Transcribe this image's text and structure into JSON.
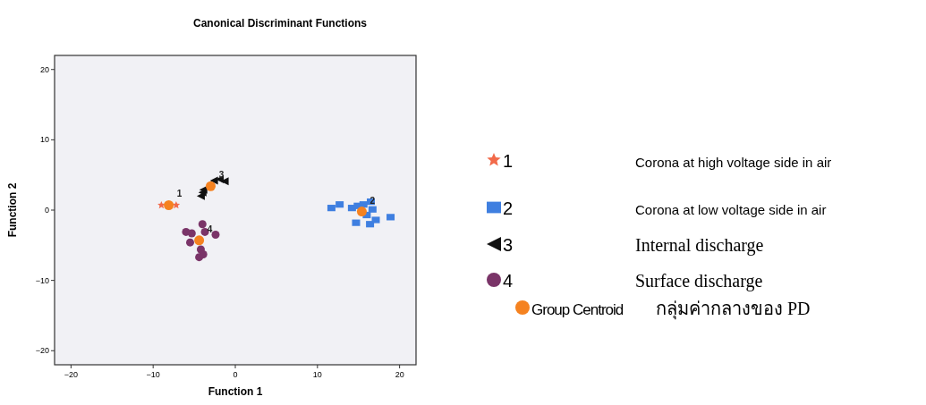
{
  "chart_data": {
    "type": "scatter",
    "title": "Canonical Discriminant Functions",
    "xlabel": "Function 1",
    "ylabel": "Function 2",
    "xlim": [
      -22,
      22
    ],
    "ylim": [
      -22,
      22
    ],
    "xticks": [
      -20,
      -10,
      0,
      10,
      20
    ],
    "yticks": [
      -20,
      -10,
      0,
      10,
      20
    ],
    "legend": "right",
    "series": [
      {
        "name": "1",
        "color": "#f26a4a",
        "marker": "star",
        "x": [
          -9.0,
          -7.2
        ],
        "values": [
          0.7,
          0.7
        ]
      },
      {
        "name": "2",
        "color": "#3f7fe0",
        "marker": "square",
        "x": [
          11.7,
          12.7,
          14.2,
          14.9,
          15.6,
          16.5,
          16.7,
          14.7,
          16.4,
          17.1,
          18.9,
          16.0
        ],
        "values": [
          0.3,
          0.8,
          0.3,
          0.6,
          0.8,
          1.2,
          0.1,
          -1.8,
          -2.0,
          -1.4,
          -1.0,
          -0.7
        ]
      },
      {
        "name": "3",
        "color": "#111111",
        "marker": "triangle",
        "x": [
          -4.2,
          -4.0,
          -3.9,
          -2.6,
          -1.9,
          -1.3
        ],
        "values": [
          2.0,
          2.5,
          2.9,
          4.2,
          4.4,
          4.1
        ]
      },
      {
        "name": "4",
        "color": "#7a3468",
        "marker": "circle",
        "x": [
          -6.0,
          -5.3,
          -5.5,
          -4.0,
          -3.7,
          -2.4,
          -4.2,
          -4.4,
          -3.9
        ],
        "values": [
          -3.1,
          -3.3,
          -4.6,
          -2.0,
          -3.1,
          -3.5,
          -5.6,
          -6.7,
          -6.3
        ]
      },
      {
        "name": "Group Centroid",
        "color": "#f58220",
        "marker": "circle",
        "x": [
          -8.1,
          15.4,
          -3.0,
          -4.4
        ],
        "values": [
          0.7,
          -0.2,
          3.4,
          -4.3
        ]
      }
    ],
    "annotations": [
      {
        "text": "1",
        "x": -8.1,
        "y": 0.7
      },
      {
        "text": "2",
        "x": 15.4,
        "y": -0.2
      },
      {
        "text": "3",
        "x": -3.0,
        "y": 3.4
      },
      {
        "text": "4",
        "x": -4.4,
        "y": -4.3
      },
      "Corona at high voltage side in air",
      "Corona at low voltage side in air",
      "Internal discharge",
      "Surface discharge",
      "กลุ่มค่ากลางของ PD"
    ]
  }
}
